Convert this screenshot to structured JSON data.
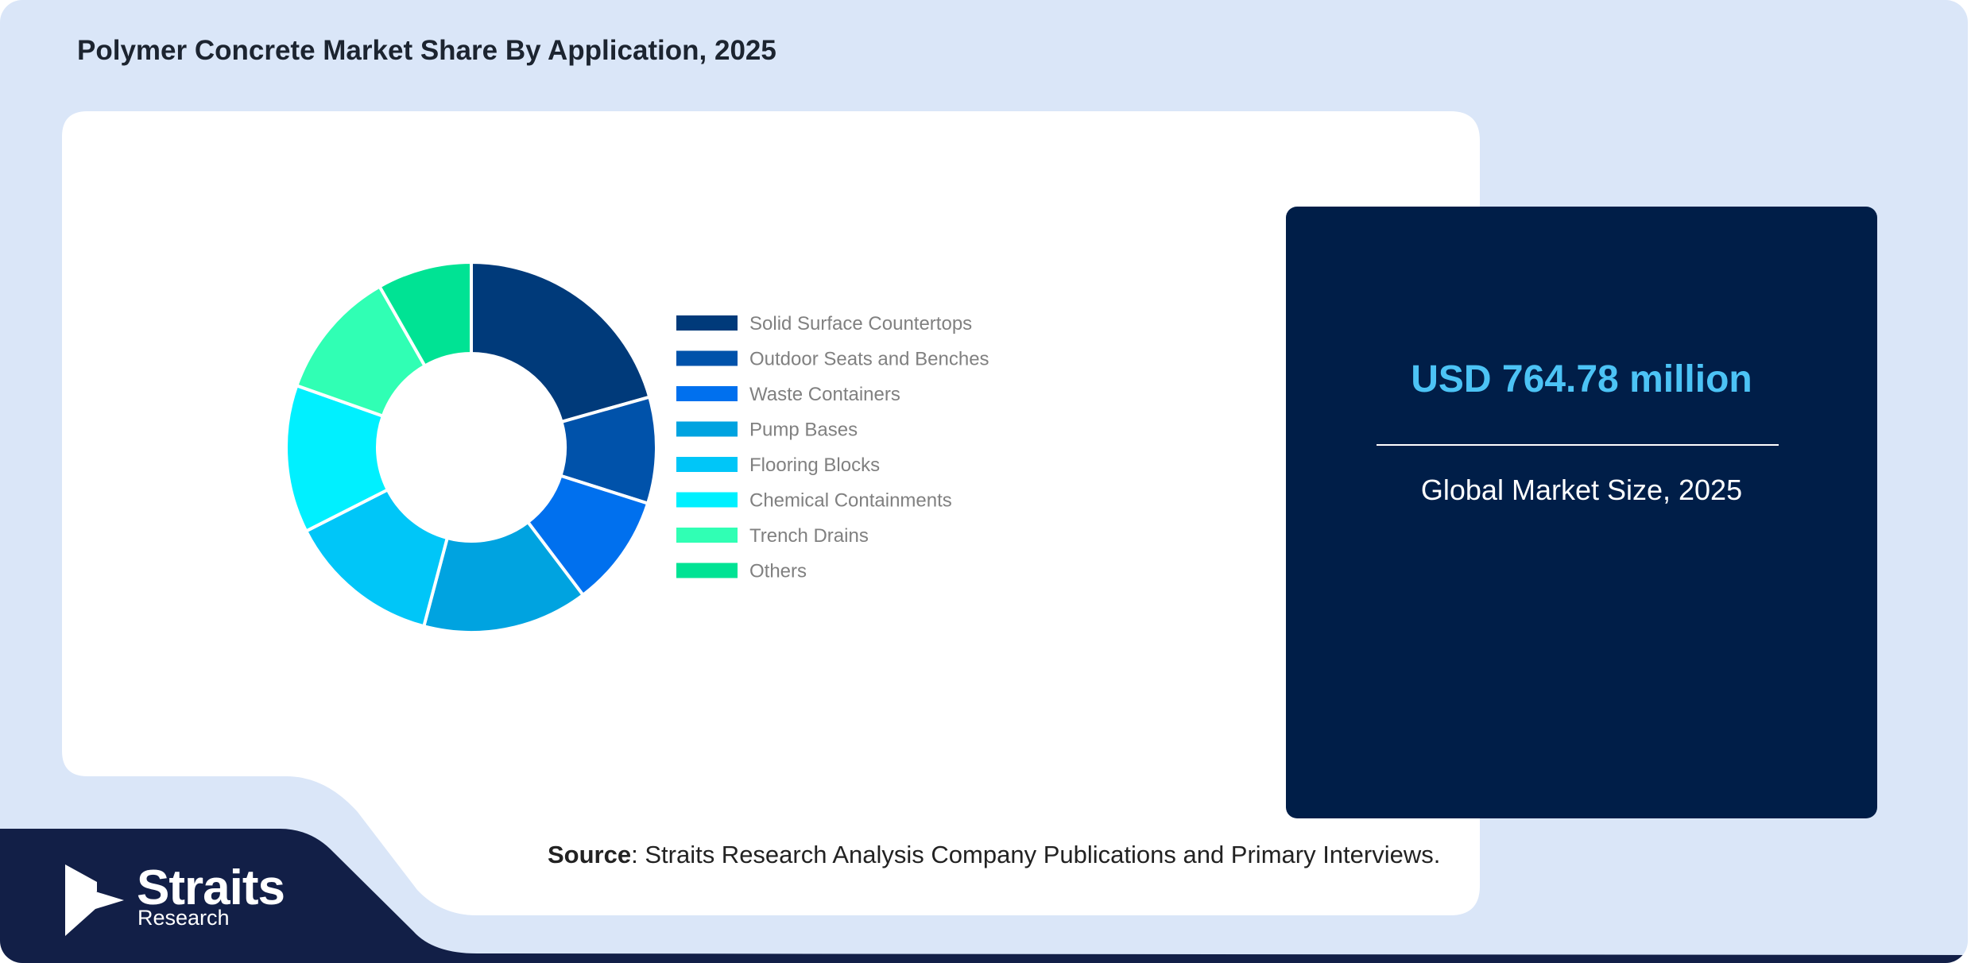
{
  "title": "Polymer Concrete Market Share By Application, 2025",
  "stat": {
    "value": "USD 764.78 million",
    "label": "Global Market Size, 2025"
  },
  "source": {
    "prefix": "Source",
    "text": ": Straits Research Analysis Company Publications and Primary Interviews."
  },
  "brand": {
    "name": "Straits",
    "sub": "Research"
  },
  "colors": {
    "background": "#dae6f8",
    "card": "#ffffff",
    "stat_card": "#001e48",
    "stat_value": "#4cc3f5",
    "brand_band": "#121f47"
  },
  "chart_data": {
    "type": "pie",
    "donut": true,
    "legend_position": "right",
    "categories": [
      "Solid Surface Countertops",
      "Outdoor Seats and Benches",
      "Waste Containers",
      "Pump Bases",
      "Flooring Blocks",
      "Chemical Containments",
      "Trench Drains",
      "Others"
    ],
    "values": [
      20,
      9,
      9.5,
      14,
      13,
      12.5,
      11,
      8
    ],
    "colors": [
      "#003a7a",
      "#0052aa",
      "#0070ee",
      "#00a3e0",
      "#00c6f8",
      "#00f0ff",
      "#30ffb4",
      "#00e394"
    ]
  }
}
